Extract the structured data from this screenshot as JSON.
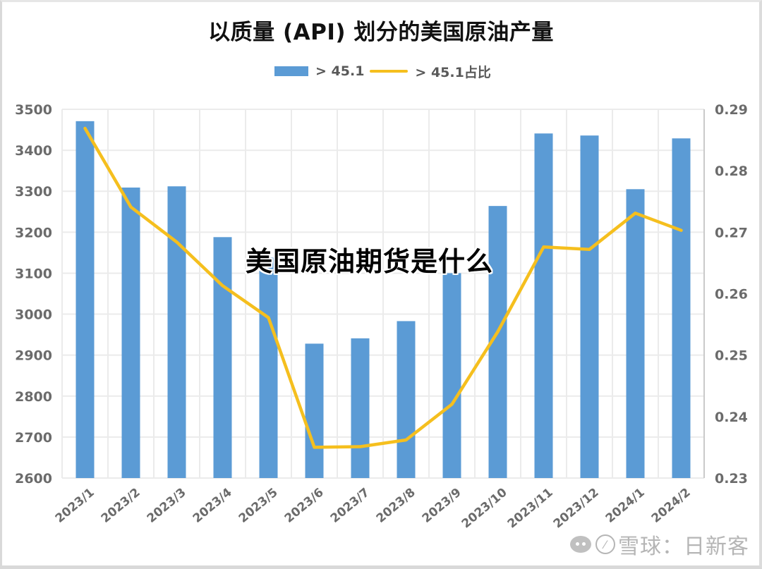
{
  "title": "以质量 (API) 划分的美国原油产量",
  "overlay_title": "美国原油期货是什么",
  "legend": {
    "bar_label": "> 45.1",
    "line_label": "> 45.1占比"
  },
  "watermark": {
    "text": "雪球：日新客",
    "icons": [
      "wechat-icon",
      "snowball-icon"
    ]
  },
  "colors": {
    "bar": "#5b9bd5",
    "line": "#f5bf1e",
    "grid": "#ebebeb",
    "axis_text": "#6b6b6b",
    "title": "#111111"
  },
  "axes": {
    "left_ticks": [
      "3500",
      "3400",
      "3300",
      "3200",
      "3100",
      "3000",
      "2900",
      "2800",
      "2700",
      "2600"
    ],
    "right_ticks": [
      "0.29",
      "0.28",
      "0.27",
      "0.26",
      "0.25",
      "0.24",
      "0.23"
    ]
  },
  "chart_data": {
    "type": "bar+line",
    "title": "以质量 (API) 划分的美国原油产量",
    "categories": [
      "2023/1",
      "2023/2",
      "2023/3",
      "2023/4",
      "2023/5",
      "2023/6",
      "2023/7",
      "2023/8",
      "2023/9",
      "2023/10",
      "2023/11",
      "2023/12",
      "2024/1",
      "2024/2"
    ],
    "series": [
      {
        "name": "> 45.1",
        "type": "bar",
        "axis": "left",
        "values": [
          3471,
          3309,
          3312,
          3188,
          3138,
          2928,
          2941,
          2983,
          3100,
          3264,
          3441,
          3436,
          3305,
          3429
        ]
      },
      {
        "name": "> 45.1占比",
        "type": "line",
        "axis": "right",
        "values": [
          0.2869,
          0.2741,
          0.2684,
          0.2613,
          0.2561,
          0.235,
          0.2351,
          0.2362,
          0.242,
          0.2538,
          0.2676,
          0.2672,
          0.2731,
          0.2703
        ]
      }
    ],
    "xlabel": "",
    "ylabel_left": "",
    "ylabel_right": "",
    "ylim_left": [
      2600,
      3500
    ],
    "ylim_right": [
      0.23,
      0.29
    ],
    "grid": true,
    "legend_position": "top"
  }
}
